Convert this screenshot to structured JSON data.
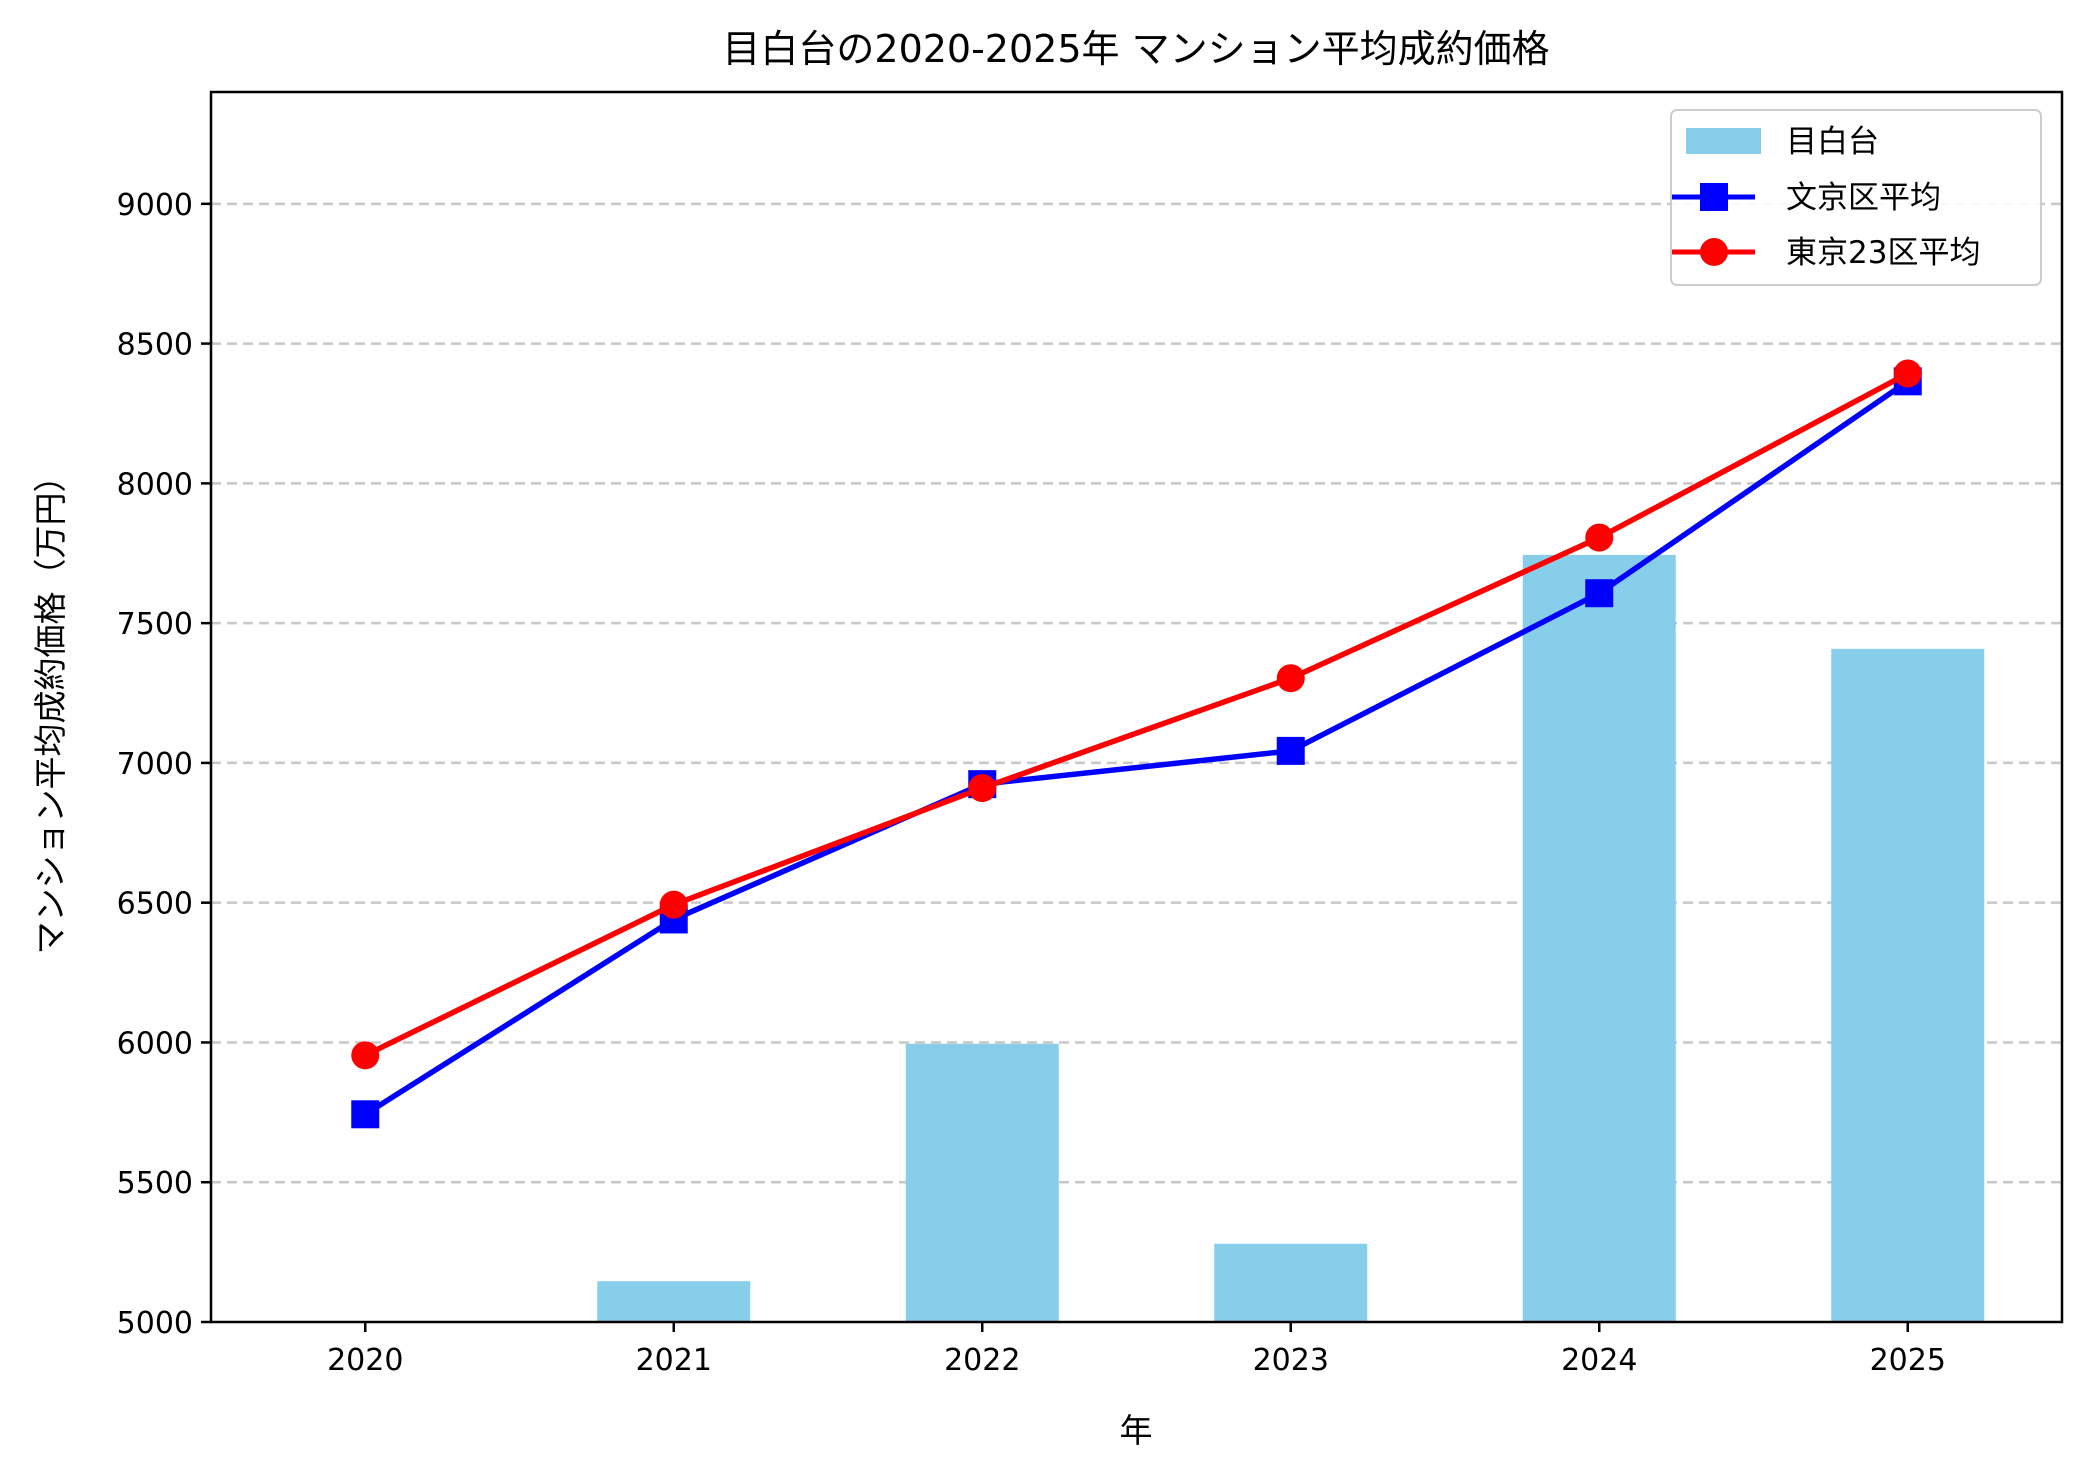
{
  "chart_data": {
    "type": "bar+line",
    "title": "目白台の2020-2025年 マンション平均成約価格",
    "xlabel": "年",
    "ylabel": "マンション平均成約価格（万円）",
    "categories": [
      2020,
      2021,
      2022,
      2023,
      2024,
      2025
    ],
    "xlim": [
      2019.5,
      2025.5
    ],
    "ylim": [
      5000,
      9400
    ],
    "yticks": [
      5000,
      5500,
      6000,
      6500,
      7000,
      7500,
      8000,
      8500,
      9000
    ],
    "grid": "y dashed",
    "legend_position": "top-right",
    "series": [
      {
        "name": "目白台",
        "kind": "bar",
        "color": "#87ceeb",
        "values": [
          null,
          5146,
          5995,
          5280,
          7744,
          7408
        ]
      },
      {
        "name": "文京区平均",
        "kind": "line",
        "marker": "square",
        "color": "#0000ff",
        "values": [
          5743,
          6440,
          6924,
          7043,
          7607,
          8365
        ]
      },
      {
        "name": "東京23区平均",
        "kind": "line",
        "marker": "circle",
        "color": "#ff0000",
        "values": [
          5954,
          6493,
          6910,
          7303,
          7806,
          8393
        ]
      }
    ]
  }
}
